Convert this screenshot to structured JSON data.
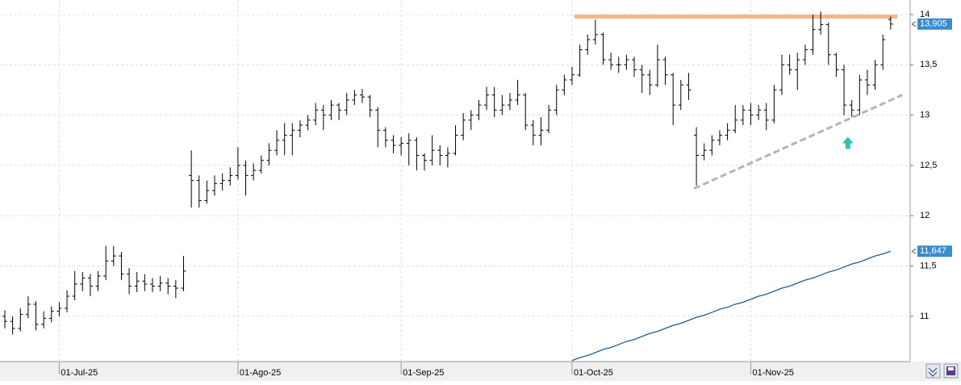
{
  "chart_data": {
    "type": "ohlc",
    "categories": [
      null,
      null,
      null,
      null,
      null,
      null,
      null,
      "01-Jul-25",
      null,
      null,
      null,
      null,
      null,
      null,
      null,
      null,
      null,
      null,
      null,
      null,
      null,
      null,
      null,
      null,
      null,
      null,
      null,
      null,
      null,
      null,
      "01-Ago-25",
      null,
      null,
      null,
      null,
      null,
      null,
      null,
      null,
      null,
      null,
      null,
      null,
      null,
      null,
      null,
      null,
      null,
      null,
      null,
      null,
      "01-Sep-25",
      null,
      null,
      null,
      null,
      null,
      null,
      null,
      null,
      null,
      null,
      null,
      null,
      null,
      null,
      null,
      null,
      null,
      null,
      null,
      null,
      null,
      "01-Oct-25",
      null,
      null,
      null,
      null,
      null,
      null,
      null,
      null,
      null,
      null,
      null,
      null,
      null,
      null,
      null,
      null,
      null,
      null,
      null,
      null,
      null,
      null,
      "01-Nov-25",
      null,
      null,
      null,
      null,
      null,
      null,
      null,
      null,
      null,
      null,
      null,
      null,
      null,
      null,
      null,
      null,
      null,
      null
    ],
    "series": [
      {
        "type": "ohlc",
        "color": "#000000",
        "values": [
          [
            11.0,
            11.06,
            10.88,
            10.95
          ],
          [
            10.95,
            11.0,
            10.82,
            10.88
          ],
          [
            10.88,
            11.08,
            10.85,
            11.02
          ],
          [
            11.02,
            11.2,
            10.98,
            11.12
          ],
          [
            11.12,
            11.15,
            10.86,
            10.92
          ],
          [
            10.92,
            11.05,
            10.88,
            10.98
          ],
          [
            10.98,
            11.1,
            10.94,
            11.05
          ],
          [
            11.05,
            11.14,
            11.0,
            11.08
          ],
          [
            11.08,
            11.26,
            11.04,
            11.2
          ],
          [
            11.2,
            11.45,
            11.16,
            11.32
          ],
          [
            11.32,
            11.44,
            11.25,
            11.38
          ],
          [
            11.38,
            11.42,
            11.2,
            11.3
          ],
          [
            11.3,
            11.45,
            11.25,
            11.4
          ],
          [
            11.4,
            11.7,
            11.36,
            11.55
          ],
          [
            11.55,
            11.7,
            11.5,
            11.6
          ],
          [
            11.6,
            11.64,
            11.36,
            11.42
          ],
          [
            11.42,
            11.48,
            11.22,
            11.3
          ],
          [
            11.3,
            11.44,
            11.24,
            11.35
          ],
          [
            11.35,
            11.42,
            11.25,
            11.32
          ],
          [
            11.32,
            11.38,
            11.24,
            11.3
          ],
          [
            11.3,
            11.4,
            11.25,
            11.33
          ],
          [
            11.33,
            11.38,
            11.22,
            11.3
          ],
          [
            11.3,
            11.36,
            11.18,
            11.28
          ],
          [
            11.28,
            11.6,
            11.25,
            11.45
          ],
          [
            12.4,
            12.65,
            12.08,
            12.35
          ],
          [
            12.35,
            12.4,
            12.08,
            12.15
          ],
          [
            12.15,
            12.35,
            12.12,
            12.25
          ],
          [
            12.25,
            12.4,
            12.2,
            12.32
          ],
          [
            12.32,
            12.42,
            12.25,
            12.35
          ],
          [
            12.35,
            12.48,
            12.3,
            12.4
          ],
          [
            12.4,
            12.68,
            12.36,
            12.5
          ],
          [
            12.5,
            12.55,
            12.2,
            12.4
          ],
          [
            12.4,
            12.52,
            12.35,
            12.45
          ],
          [
            12.45,
            12.6,
            12.42,
            12.55
          ],
          [
            12.55,
            12.72,
            12.5,
            12.65
          ],
          [
            12.65,
            12.85,
            12.6,
            12.75
          ],
          [
            12.75,
            12.92,
            12.6,
            12.8
          ],
          [
            12.8,
            12.92,
            12.6,
            12.85
          ],
          [
            12.85,
            12.95,
            12.78,
            12.9
          ],
          [
            12.9,
            13.0,
            12.85,
            12.95
          ],
          [
            12.95,
            13.12,
            12.9,
            13.05
          ],
          [
            13.05,
            13.1,
            12.85,
            13.0
          ],
          [
            13.0,
            13.15,
            12.95,
            13.1
          ],
          [
            13.1,
            13.12,
            12.95,
            13.05
          ],
          [
            13.05,
            13.22,
            13.0,
            13.15
          ],
          [
            13.15,
            13.25,
            13.1,
            13.2
          ],
          [
            13.2,
            13.26,
            13.12,
            13.18
          ],
          [
            13.18,
            13.2,
            12.98,
            13.05
          ],
          [
            13.05,
            13.08,
            12.68,
            12.85
          ],
          [
            12.85,
            12.88,
            12.68,
            12.75
          ],
          [
            12.75,
            12.8,
            12.62,
            12.7
          ],
          [
            12.7,
            12.78,
            12.6,
            12.72
          ],
          [
            12.72,
            12.82,
            12.5,
            12.75
          ],
          [
            12.75,
            12.78,
            12.45,
            12.6
          ],
          [
            12.6,
            12.62,
            12.45,
            12.55
          ],
          [
            12.55,
            12.8,
            12.5,
            12.65
          ],
          [
            12.65,
            12.7,
            12.5,
            12.6
          ],
          [
            12.6,
            12.68,
            12.48,
            12.62
          ],
          [
            12.62,
            12.9,
            12.6,
            12.8
          ],
          [
            12.8,
            13.02,
            12.75,
            12.95
          ],
          [
            12.95,
            13.05,
            12.85,
            13.0
          ],
          [
            13.0,
            13.15,
            12.95,
            13.1
          ],
          [
            13.1,
            13.28,
            13.05,
            13.2
          ],
          [
            13.2,
            13.28,
            12.98,
            13.05
          ],
          [
            13.05,
            13.2,
            13.0,
            13.1
          ],
          [
            13.1,
            13.22,
            13.05,
            13.15
          ],
          [
            13.15,
            13.35,
            13.1,
            13.2
          ],
          [
            13.2,
            13.22,
            12.85,
            12.9
          ],
          [
            12.9,
            12.95,
            12.7,
            12.8
          ],
          [
            12.8,
            12.98,
            12.7,
            12.85
          ],
          [
            12.85,
            13.1,
            12.82,
            13.05
          ],
          [
            13.05,
            13.3,
            13.0,
            13.25
          ],
          [
            13.25,
            13.4,
            13.2,
            13.35
          ],
          [
            13.35,
            13.48,
            13.3,
            13.4
          ],
          [
            13.4,
            13.7,
            13.38,
            13.65
          ],
          [
            13.65,
            13.8,
            13.6,
            13.75
          ],
          [
            13.75,
            13.95,
            13.7,
            13.8
          ],
          [
            13.8,
            13.82,
            13.5,
            13.55
          ],
          [
            13.55,
            13.62,
            13.45,
            13.5
          ],
          [
            13.5,
            13.58,
            13.42,
            13.5
          ],
          [
            13.5,
            13.6,
            13.45,
            13.55
          ],
          [
            13.55,
            13.58,
            13.38,
            13.45
          ],
          [
            13.45,
            13.5,
            13.22,
            13.4
          ],
          [
            13.4,
            13.45,
            13.2,
            13.3
          ],
          [
            13.3,
            13.7,
            13.28,
            13.55
          ],
          [
            13.55,
            13.58,
            13.3,
            13.4
          ],
          [
            13.4,
            13.42,
            12.9,
            13.1
          ],
          [
            13.1,
            13.35,
            13.05,
            13.3
          ],
          [
            13.3,
            13.42,
            13.15,
            13.25
          ],
          [
            12.8,
            12.88,
            12.3,
            12.6
          ],
          [
            12.6,
            12.72,
            12.55,
            12.65
          ],
          [
            12.65,
            12.8,
            12.6,
            12.75
          ],
          [
            12.75,
            12.85,
            12.7,
            12.8
          ],
          [
            12.8,
            12.92,
            12.75,
            12.85
          ],
          [
            12.85,
            13.1,
            12.82,
            12.95
          ],
          [
            12.95,
            13.1,
            12.9,
            13.05
          ],
          [
            13.05,
            13.12,
            12.9,
            13.0
          ],
          [
            13.0,
            13.1,
            12.95,
            13.05
          ],
          [
            13.05,
            13.12,
            12.85,
            12.95
          ],
          [
            12.95,
            13.3,
            12.92,
            13.25
          ],
          [
            13.25,
            13.6,
            13.2,
            13.5
          ],
          [
            13.5,
            13.6,
            13.4,
            13.45
          ],
          [
            13.45,
            13.62,
            13.25,
            13.55
          ],
          [
            13.55,
            13.7,
            13.5,
            13.65
          ],
          [
            13.65,
            14.0,
            13.6,
            13.85
          ],
          [
            13.85,
            14.03,
            13.8,
            13.9
          ],
          [
            13.9,
            13.92,
            13.5,
            13.6
          ],
          [
            13.6,
            13.62,
            13.38,
            13.45
          ],
          [
            13.45,
            13.5,
            13.0,
            13.1
          ],
          [
            13.1,
            13.15,
            12.98,
            13.05
          ],
          [
            13.05,
            13.4,
            13.0,
            13.35
          ],
          [
            13.35,
            13.45,
            13.2,
            13.3
          ],
          [
            13.3,
            13.55,
            13.25,
            13.5
          ],
          [
            13.5,
            13.8,
            13.45,
            13.75
          ],
          [
            13.95,
            13.98,
            13.85,
            13.905
          ]
        ]
      },
      {
        "type": "line",
        "color": "#1f5f8f",
        "values": [
          null,
          null,
          null,
          null,
          null,
          null,
          null,
          null,
          null,
          null,
          null,
          null,
          null,
          null,
          null,
          null,
          null,
          null,
          null,
          null,
          null,
          null,
          null,
          null,
          null,
          null,
          null,
          null,
          null,
          null,
          null,
          null,
          null,
          null,
          null,
          null,
          null,
          null,
          null,
          null,
          null,
          null,
          null,
          null,
          null,
          null,
          null,
          null,
          null,
          null,
          null,
          null,
          null,
          null,
          null,
          null,
          null,
          null,
          null,
          null,
          null,
          null,
          null,
          null,
          null,
          null,
          null,
          null,
          null,
          null,
          null,
          null,
          null,
          10.56,
          10.59,
          10.61,
          10.64,
          10.67,
          10.69,
          10.72,
          10.75,
          10.77,
          10.8,
          10.83,
          10.85,
          10.88,
          10.91,
          10.93,
          10.96,
          10.99,
          11.01,
          11.04,
          11.07,
          11.09,
          11.12,
          11.14,
          11.17,
          11.2,
          11.22,
          11.25,
          11.28,
          11.3,
          11.33,
          11.36,
          11.38,
          11.41,
          11.44,
          11.46,
          11.49,
          11.52,
          11.54,
          11.57,
          11.6,
          11.62,
          11.647
        ]
      }
    ],
    "markers": [
      {
        "value": 13.905,
        "label": "13,905",
        "color": "#3a8ccc"
      },
      {
        "value": 11.647,
        "label": "11,647",
        "color": "#3a8ccc"
      }
    ],
    "hline": {
      "value": 13.98,
      "color": "#f4b68a"
    },
    "trendline": {
      "x": [
        88.7,
        115.5
      ],
      "y": [
        12.27,
        13.2
      ],
      "color": "#b4b4b4"
    },
    "arrow": {
      "x": 108.5,
      "y": 12.72,
      "color": "#2ec4b4"
    },
    "ylim": [
      10.55,
      14.144
    ],
    "yticks": [
      11,
      {
        "value": 11.5,
        "label": "11,5"
      },
      12,
      {
        "value": 12.5,
        "label": "12,5"
      },
      13,
      {
        "value": 13.5,
        "label": "13,5"
      },
      14
    ],
    "grid": true
  }
}
